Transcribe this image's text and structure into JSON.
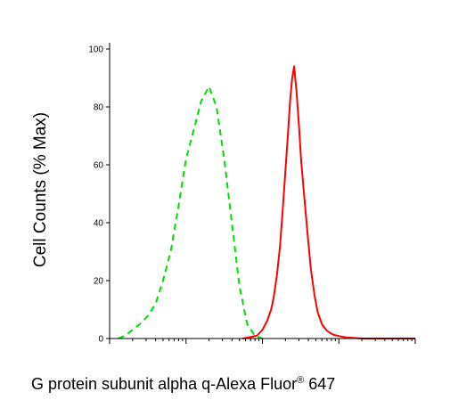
{
  "chart_data": {
    "type": "line",
    "xlabel": "G protein subunit alpha q-Alexa Fluor",
    "xlabel_superscript": "®",
    "xlabel_suffix": " 647",
    "ylabel": "Cell Counts (% Max)",
    "ylim": [
      0,
      100
    ],
    "yticks": [
      0,
      20,
      40,
      60,
      80,
      100
    ],
    "ytick_labels": [
      "0",
      "20",
      "40",
      "60",
      "80",
      "100"
    ],
    "xscale": "log",
    "xlim": [
      10,
      100000
    ],
    "grid": false,
    "series": [
      {
        "color": "#00dd00",
        "line_style": "dashed",
        "x": [
          13,
          16,
          20,
          25,
          32,
          40,
          50,
          63,
          79,
          100,
          126,
          158,
          200,
          251,
          316,
          398,
          501,
          631,
          794,
          1000
        ],
        "y": [
          0,
          1,
          3,
          5,
          8,
          12,
          20,
          30,
          45,
          62,
          72,
          82,
          87,
          80,
          62,
          40,
          18,
          5,
          1,
          0
        ]
      },
      {
        "color": "#ff0000",
        "line_style": "solid",
        "x": [
          550,
          700,
          850,
          1000,
          1150,
          1300,
          1400,
          1550,
          1700,
          1850,
          2000,
          2150,
          2300,
          2450,
          2600,
          2800,
          3000,
          3200,
          3500,
          3900,
          4300,
          4800,
          5300,
          6000,
          6800,
          7600,
          8500,
          9500,
          11000,
          12500,
          14000,
          16000,
          20000,
          100000
        ],
        "y": [
          0,
          0.5,
          1,
          3,
          6,
          10,
          14,
          22,
          32,
          45,
          58,
          70,
          82,
          90,
          94,
          85,
          74,
          62,
          50,
          36,
          24,
          15,
          9,
          5,
          3,
          2,
          1.3,
          1,
          0.6,
          0.4,
          0.3,
          0.2,
          0,
          0
        ]
      }
    ]
  }
}
